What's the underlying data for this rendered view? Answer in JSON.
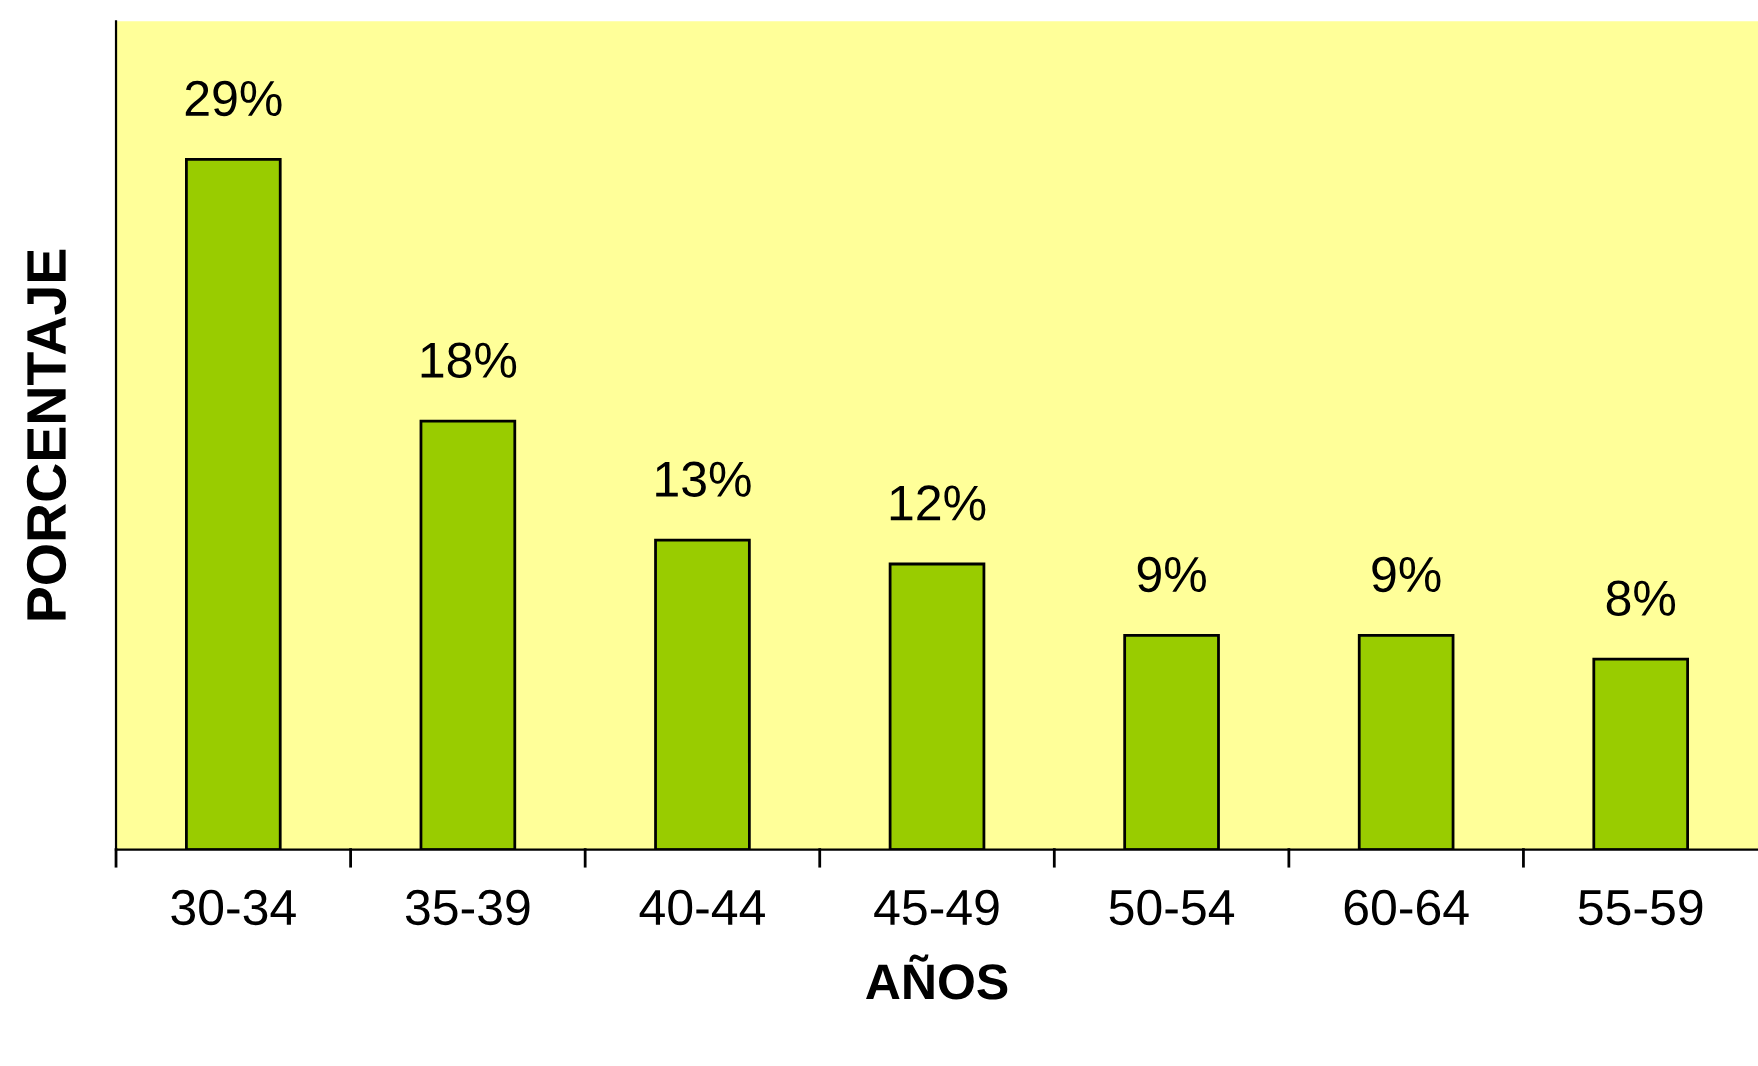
{
  "chart_data": {
    "type": "bar",
    "xlabel": "AÑOS",
    "ylabel": "PORCENTAJE",
    "categories": [
      "30-34",
      "35-39",
      "40-44",
      "45-49",
      "50-54",
      "60-64",
      "55-59"
    ],
    "values": [
      29,
      18,
      13,
      12,
      9,
      9,
      8
    ],
    "value_labels": [
      "29%",
      "18%",
      "13%",
      "12%",
      "9%",
      "9%",
      "8%"
    ],
    "color": "#99cc00",
    "grid": false,
    "legend": false
  }
}
